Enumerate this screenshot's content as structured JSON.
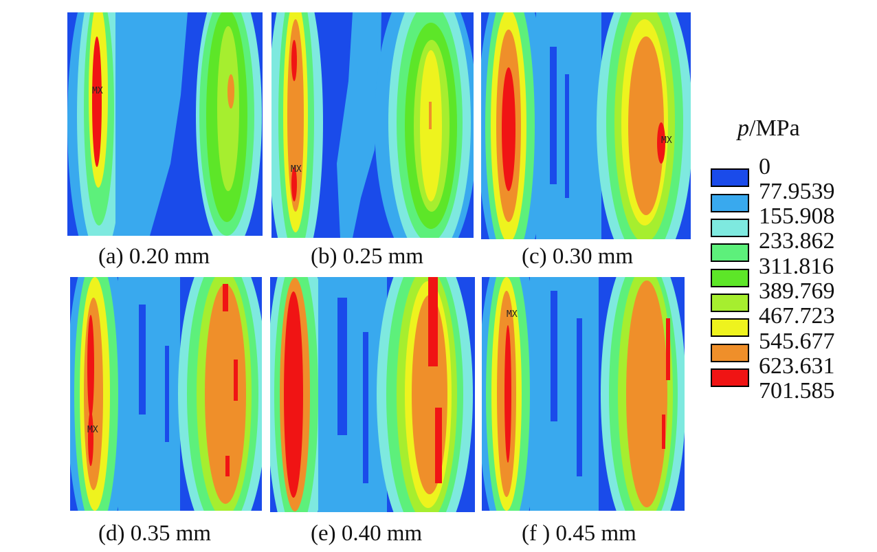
{
  "figure": {
    "panels": [
      {
        "caption": "(a) 0.20 mm",
        "mx": true
      },
      {
        "caption": "(b) 0.25 mm",
        "mx": true
      },
      {
        "caption": "(c) 0.30 mm",
        "mx": true
      },
      {
        "caption": "(d) 0.35 mm",
        "mx": true
      },
      {
        "caption": "(e) 0.40 mm",
        "mx": false
      },
      {
        "caption": "(f ) 0.45 mm",
        "mx": true
      }
    ],
    "mx_label": "MX"
  },
  "legend": {
    "title_symbol": "p",
    "title_unit": "/MPa",
    "levels": [
      "0",
      "77.9539",
      "155.908",
      "233.862",
      "311.816",
      "389.769",
      "467.723",
      "545.677",
      "623.631",
      "701.585"
    ],
    "colors": [
      "#1a4bea",
      "#39a9ee",
      "#7ee9df",
      "#5df07b",
      "#5de628",
      "#a6ee2f",
      "#eef31e",
      "#ef8f2a",
      "#f01414"
    ]
  }
}
